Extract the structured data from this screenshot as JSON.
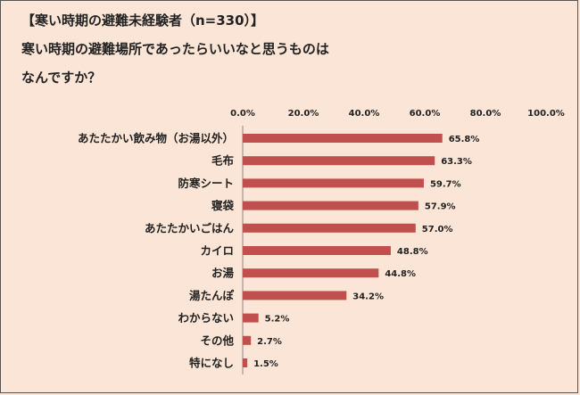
{
  "chart_data": {
    "type": "bar",
    "orientation": "horizontal",
    "title_lines": [
      "【寒い時期の避難未経験者（n=330）】",
      "寒い時期の避難場所であったらいいなと思うものは",
      "なんですか？"
    ],
    "xlim": [
      0,
      100
    ],
    "x_ticks": [
      "0.0%",
      "20.0%",
      "40.0%",
      "60.0%",
      "80.0%",
      "100.0%"
    ],
    "x_tick_values": [
      0,
      20,
      40,
      60,
      80,
      100
    ],
    "categories": [
      "あたたかい飲み物（お湯以外）",
      "毛布",
      "防寒シート",
      "寝袋",
      "あたたかいごはん",
      "カイロ",
      "お湯",
      "湯たんぽ",
      "わからない",
      "その他",
      "特になし"
    ],
    "values": [
      65.8,
      63.3,
      59.7,
      57.9,
      57.0,
      48.8,
      44.8,
      34.2,
      5.2,
      2.7,
      1.5
    ],
    "value_labels": [
      "65.8%",
      "63.3%",
      "59.7%",
      "57.9%",
      "57.0%",
      "48.8%",
      "44.8%",
      "34.2%",
      "5.2%",
      "2.7%",
      "1.5%"
    ],
    "bar_color": "#c0504d",
    "axis_color": "#888888"
  }
}
